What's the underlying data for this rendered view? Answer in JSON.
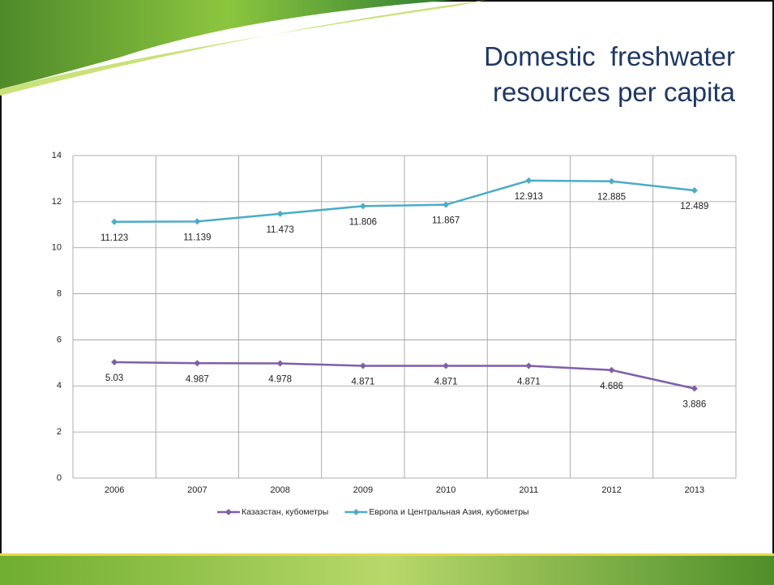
{
  "chart_data": {
    "type": "line",
    "title": "Domestic  freshwater resources per capita",
    "categories": [
      "2006",
      "2007",
      "2008",
      "2009",
      "2010",
      "2011",
      "2012",
      "2013"
    ],
    "series": [
      {
        "name": "Казазстан, кубометры",
        "color": "#7f5fa8",
        "values": [
          5.03,
          4.987,
          4.978,
          4.871,
          4.871,
          4.871,
          4.686,
          3.886
        ]
      },
      {
        "name": "Европа и Центральная Азия, кубометры",
        "color": "#4bacc6",
        "values": [
          11.123,
          11.139,
          11.473,
          11.806,
          11.867,
          12.913,
          12.885,
          12.489
        ]
      }
    ],
    "ylim": [
      0,
      14
    ],
    "yticks": [
      0,
      2,
      4,
      6,
      8,
      10,
      12,
      14
    ],
    "grid": true,
    "legend": "bottom"
  }
}
